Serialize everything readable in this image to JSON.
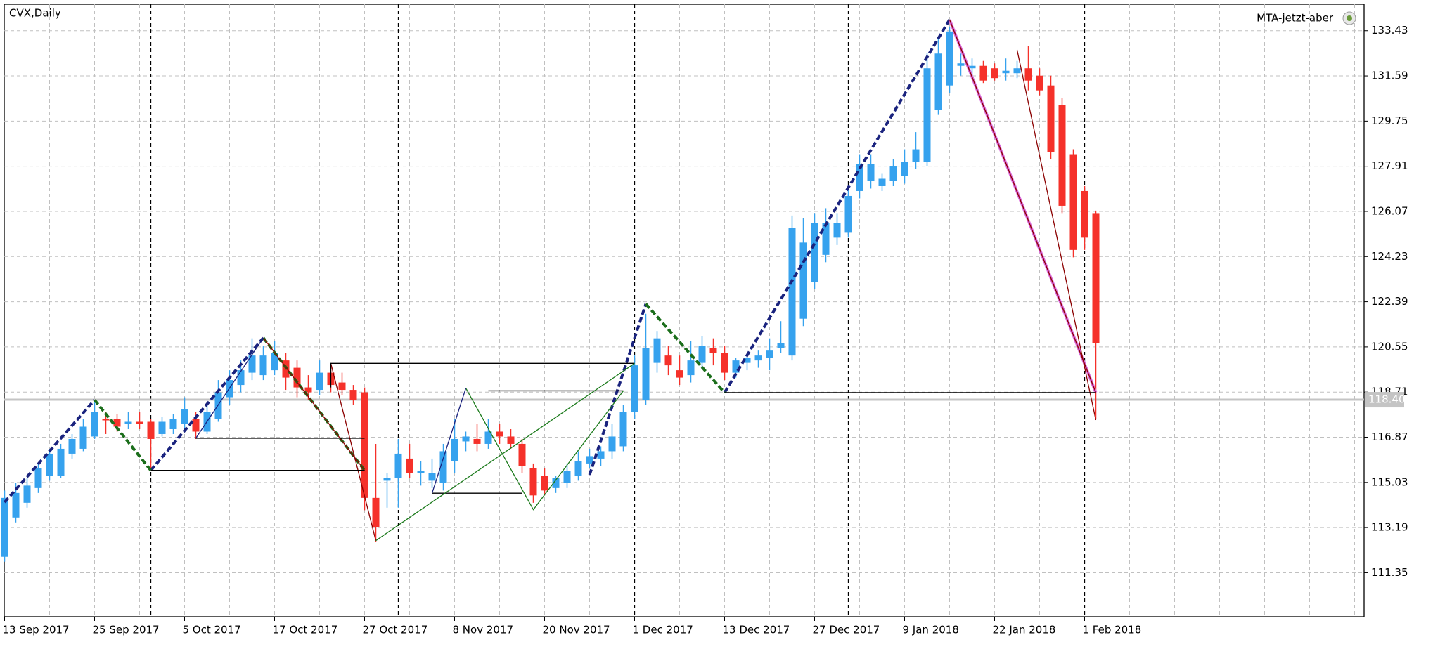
{
  "chart_data": {
    "type": "candlestick",
    "title": "CVX,Daily",
    "indicator": "MTA-jetzt-aber",
    "x": [
      "13 Sep 2017",
      null,
      null,
      null,
      null,
      null,
      null,
      null,
      "25 Sep 2017",
      null,
      null,
      null,
      null,
      null,
      null,
      null,
      "5 Oct 2017",
      null,
      null,
      null,
      null,
      null,
      null,
      null,
      "17 Oct 2017",
      null,
      null,
      null,
      null,
      null,
      null,
      null,
      "27 Oct 2017",
      null,
      null,
      null,
      null,
      null,
      null,
      null,
      "8 Nov 2017",
      null,
      null,
      null,
      null,
      null,
      null,
      null,
      "20 Nov 2017",
      null,
      null,
      null,
      null,
      null,
      null,
      null,
      "1 Dec 2017",
      null,
      null,
      null,
      null,
      null,
      null,
      null,
      "13 Dec 2017",
      null,
      null,
      null,
      null,
      null,
      null,
      null,
      "27 Dec 2017",
      null,
      null,
      null,
      null,
      null,
      null,
      null,
      "9 Jan 2018",
      null,
      null,
      null,
      null,
      null,
      null,
      null,
      "22 Jan 2018",
      null,
      null,
      null,
      null,
      null,
      null,
      null,
      "1 Feb 2018",
      null
    ],
    "candles": [
      [
        112.0,
        114.7,
        111.8,
        114.4
      ],
      [
        113.6,
        115.0,
        113.4,
        114.6
      ],
      [
        114.2,
        115.2,
        114.0,
        114.9
      ],
      [
        114.8,
        115.8,
        114.6,
        115.6
      ],
      [
        115.3,
        116.4,
        115.1,
        116.2
      ],
      [
        115.3,
        116.6,
        115.2,
        116.4
      ],
      [
        116.2,
        117.0,
        116.0,
        116.8
      ],
      [
        116.4,
        117.6,
        116.3,
        117.3
      ],
      [
        116.9,
        118.4,
        116.8,
        117.9
      ],
      [
        117.6,
        117.9,
        117.0,
        117.6
      ],
      [
        117.6,
        117.8,
        117.1,
        117.3
      ],
      [
        117.4,
        117.9,
        117.2,
        117.5
      ],
      [
        117.5,
        117.9,
        117.2,
        117.4
      ],
      [
        117.5,
        117.6,
        115.6,
        116.8
      ],
      [
        117.0,
        117.7,
        116.9,
        117.5
      ],
      [
        117.2,
        117.8,
        117.0,
        117.6
      ],
      [
        117.4,
        118.5,
        117.2,
        118.0
      ],
      [
        117.6,
        117.9,
        116.8,
        117.1
      ],
      [
        117.1,
        118.3,
        117.0,
        117.9
      ],
      [
        117.6,
        119.2,
        117.5,
        118.7
      ],
      [
        118.5,
        119.6,
        118.2,
        119.2
      ],
      [
        119.0,
        120.0,
        118.7,
        119.6
      ],
      [
        119.5,
        120.9,
        119.2,
        120.2
      ],
      [
        119.4,
        120.6,
        119.2,
        120.2
      ],
      [
        119.6,
        120.8,
        119.4,
        120.3
      ],
      [
        120.0,
        120.3,
        118.8,
        119.3
      ],
      [
        119.7,
        120.0,
        118.5,
        118.9
      ],
      [
        118.9,
        119.4,
        118.4,
        118.7
      ],
      [
        118.8,
        120.0,
        118.6,
        119.5
      ],
      [
        119.5,
        119.8,
        118.7,
        119.0
      ],
      [
        119.1,
        119.5,
        118.6,
        118.8
      ],
      [
        118.8,
        119.0,
        118.2,
        118.4
      ],
      [
        118.7,
        118.9,
        113.9,
        114.4
      ],
      [
        114.4,
        116.6,
        112.6,
        113.2
      ],
      [
        115.1,
        115.4,
        114.0,
        115.2
      ],
      [
        115.2,
        116.8,
        114.0,
        116.2
      ],
      [
        116.0,
        116.6,
        115.2,
        115.4
      ],
      [
        115.4,
        115.9,
        114.9,
        115.5
      ],
      [
        115.1,
        116.0,
        114.8,
        115.4
      ],
      [
        115.0,
        116.6,
        114.7,
        116.3
      ],
      [
        115.9,
        117.6,
        115.4,
        116.8
      ],
      [
        116.7,
        117.1,
        116.3,
        116.9
      ],
      [
        116.8,
        117.4,
        116.3,
        116.6
      ],
      [
        116.6,
        117.6,
        116.4,
        117.1
      ],
      [
        117.1,
        117.4,
        116.6,
        116.9
      ],
      [
        116.9,
        117.2,
        116.4,
        116.6
      ],
      [
        116.6,
        116.8,
        115.4,
        115.7
      ],
      [
        115.6,
        115.8,
        114.2,
        114.5
      ],
      [
        115.3,
        115.6,
        114.5,
        114.7
      ],
      [
        114.8,
        115.3,
        114.6,
        115.2
      ],
      [
        115.0,
        115.8,
        114.8,
        115.5
      ],
      [
        115.3,
        116.3,
        115.1,
        115.9
      ],
      [
        115.8,
        116.4,
        115.6,
        116.1
      ],
      [
        116.0,
        116.5,
        115.7,
        116.3
      ],
      [
        116.3,
        117.4,
        116.0,
        116.9
      ],
      [
        116.5,
        118.2,
        116.3,
        117.9
      ],
      [
        117.9,
        120.2,
        117.6,
        119.8
      ],
      [
        118.4,
        121.9,
        118.2,
        120.5
      ],
      [
        119.9,
        121.2,
        119.5,
        120.9
      ],
      [
        120.2,
        120.6,
        119.4,
        119.8
      ],
      [
        119.6,
        120.2,
        119.0,
        119.3
      ],
      [
        119.4,
        120.8,
        119.1,
        120.0
      ],
      [
        119.9,
        121.0,
        119.7,
        120.6
      ],
      [
        120.5,
        120.9,
        119.8,
        120.3
      ],
      [
        120.3,
        120.6,
        119.2,
        119.5
      ],
      [
        119.5,
        120.1,
        119.3,
        120.0
      ],
      [
        119.9,
        120.2,
        119.6,
        120.1
      ],
      [
        120.0,
        120.4,
        119.7,
        120.2
      ],
      [
        120.1,
        120.9,
        119.6,
        120.4
      ],
      [
        120.5,
        121.6,
        120.3,
        120.7
      ],
      [
        120.2,
        125.9,
        120.0,
        125.4
      ],
      [
        121.7,
        125.8,
        121.4,
        124.8
      ],
      [
        123.2,
        126.0,
        122.9,
        125.6
      ],
      [
        124.3,
        126.2,
        124.0,
        125.6
      ],
      [
        125.0,
        126.0,
        124.7,
        125.6
      ],
      [
        125.2,
        127.0,
        125.0,
        126.7
      ],
      [
        126.9,
        128.4,
        126.6,
        128.0
      ],
      [
        127.3,
        128.4,
        127.0,
        128.0
      ],
      [
        127.1,
        127.6,
        126.9,
        127.4
      ],
      [
        127.3,
        128.2,
        127.1,
        127.9
      ],
      [
        127.5,
        128.6,
        127.2,
        128.1
      ],
      [
        128.1,
        129.3,
        127.8,
        128.6
      ],
      [
        128.1,
        132.5,
        127.9,
        131.9
      ],
      [
        130.2,
        133.1,
        130.0,
        132.5
      ],
      [
        131.2,
        133.6,
        130.9,
        133.4
      ],
      [
        132.0,
        132.5,
        131.6,
        132.1
      ],
      [
        131.9,
        132.3,
        131.6,
        132.0
      ],
      [
        132.0,
        132.2,
        131.3,
        131.4
      ],
      [
        131.9,
        132.1,
        131.4,
        131.5
      ],
      [
        131.7,
        132.3,
        131.4,
        131.8
      ],
      [
        131.7,
        132.2,
        131.5,
        131.9
      ],
      [
        131.9,
        132.8,
        131.0,
        131.4
      ],
      [
        131.6,
        131.9,
        130.8,
        131.0
      ],
      [
        131.2,
        131.6,
        128.2,
        128.5
      ],
      [
        130.4,
        130.7,
        126.0,
        126.3
      ],
      [
        128.4,
        128.6,
        124.2,
        124.5
      ],
      [
        126.9,
        127.1,
        124.5,
        125.0
      ],
      [
        126.0,
        126.1,
        117.6,
        120.7
      ]
    ],
    "up_color": "#36a2ee",
    "down_color": "#f5312a",
    "ylim": [
      109.56,
      134.51
    ],
    "yticks": [
      111.35,
      113.19,
      115.03,
      116.87,
      118.71,
      120.55,
      122.39,
      124.23,
      126.07,
      127.91,
      129.75,
      131.59,
      133.43
    ],
    "grid": true,
    "current_price": {
      "value": 118.4,
      "label": "118.40"
    },
    "current_price_color": "#c4c4c4",
    "period_separators": [
      13,
      35,
      56,
      75,
      96
    ],
    "overlays": [
      {
        "color": "#1a237e",
        "width": 4,
        "dashed": true,
        "points": [
          [
            0,
            114.22
          ],
          [
            8,
            118.39
          ]
        ]
      },
      {
        "color": "#1a237e",
        "width": 4,
        "dashed": true,
        "points": [
          [
            13,
            115.52
          ],
          [
            23,
            120.92
          ]
        ]
      },
      {
        "color": "#1a237e",
        "width": 4,
        "dashed": true,
        "points": [
          [
            52,
            115.34
          ],
          [
            57,
            122.3
          ]
        ]
      },
      {
        "color": "#1a237e",
        "width": 4,
        "dashed": true,
        "points": [
          [
            64,
            118.69
          ],
          [
            84,
            133.88
          ]
        ]
      },
      {
        "color": "#1b6e1b",
        "width": 4,
        "dashed": true,
        "points": [
          [
            8,
            118.39
          ],
          [
            13,
            115.52
          ]
        ]
      },
      {
        "color": "#1b6e1b",
        "width": 4,
        "dashed": true,
        "points": [
          [
            23,
            120.92
          ],
          [
            32,
            115.52
          ]
        ]
      },
      {
        "color": "#1b6e1b",
        "width": 4,
        "dashed": true,
        "points": [
          [
            57,
            122.3
          ],
          [
            64,
            118.69
          ]
        ]
      },
      {
        "color": "#d966d9",
        "width": 4,
        "dashed": false,
        "points": [
          [
            84,
            133.88
          ],
          [
            97,
            118.69
          ]
        ]
      },
      {
        "color": "#8b0000",
        "width": 1.3,
        "dashed": false,
        "points": [
          [
            84,
            133.88
          ],
          [
            97,
            118.69
          ]
        ]
      },
      {
        "color": "#8b0000",
        "width": 1.3,
        "dashed": false,
        "points": [
          [
            90,
            132.65
          ],
          [
            97,
            117.57
          ]
        ]
      },
      {
        "color": "#8b0000",
        "width": 1.3,
        "dashed": false,
        "points": [
          [
            29,
            119.88
          ],
          [
            33,
            112.66
          ]
        ]
      },
      {
        "color": "#8b0000",
        "width": 1.3,
        "dashed": false,
        "points": [
          [
            23,
            120.92
          ],
          [
            32,
            115.52
          ]
        ]
      },
      {
        "color": "#000000",
        "width": 1.3,
        "dashed": false,
        "points": [
          [
            13,
            115.52
          ],
          [
            32,
            115.52
          ]
        ]
      },
      {
        "color": "#000000",
        "width": 1.3,
        "dashed": false,
        "points": [
          [
            17,
            116.83
          ],
          [
            32,
            116.83
          ]
        ]
      },
      {
        "color": "#000000",
        "width": 1.3,
        "dashed": false,
        "points": [
          [
            29,
            118.9
          ],
          [
            29,
            119.88
          ],
          [
            56,
            119.88
          ]
        ]
      },
      {
        "color": "#000000",
        "width": 1.3,
        "dashed": false,
        "points": [
          [
            38,
            114.59
          ],
          [
            46,
            114.59
          ]
        ]
      },
      {
        "color": "#000000",
        "width": 1.3,
        "dashed": false,
        "points": [
          [
            43,
            118.76
          ],
          [
            55,
            118.76
          ]
        ]
      },
      {
        "color": "#000000",
        "width": 1.3,
        "dashed": false,
        "points": [
          [
            64,
            118.69
          ],
          [
            97,
            118.69
          ]
        ]
      },
      {
        "color": "#1b7a1b",
        "width": 1.3,
        "dashed": false,
        "points": [
          [
            33,
            112.66
          ],
          [
            56,
            119.88
          ]
        ]
      },
      {
        "color": "#1b7a1b",
        "width": 1.3,
        "dashed": false,
        "points": [
          [
            41,
            118.87
          ],
          [
            47,
            113.92
          ],
          [
            55,
            118.76
          ]
        ]
      },
      {
        "color": "#1a237e",
        "width": 1.3,
        "dashed": false,
        "points": [
          [
            38,
            114.59
          ],
          [
            41,
            118.87
          ]
        ]
      },
      {
        "color": "#1a237e",
        "width": 1.3,
        "dashed": false,
        "points": [
          [
            17,
            116.83
          ],
          [
            23,
            120.92
          ]
        ]
      }
    ]
  }
}
